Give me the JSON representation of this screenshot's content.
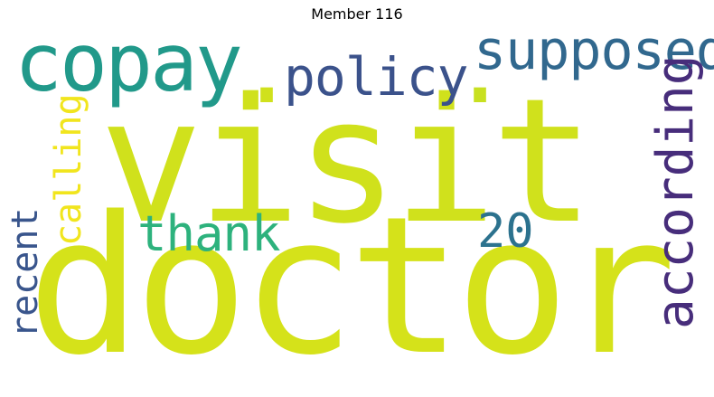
{
  "title": "Member 116",
  "words": {
    "visit": {
      "text": "visit",
      "color": "#d0e11c"
    },
    "doctor": {
      "text": "doctor",
      "color": "#d5e21a"
    },
    "copay": {
      "text": "copay",
      "color": "#21998a"
    },
    "policy": {
      "text": "policy",
      "color": "#3b528b"
    },
    "supposed": {
      "text": "supposed",
      "color": "#31688e"
    },
    "according": {
      "text": "according",
      "color": "#472d7b"
    },
    "thank": {
      "text": "thank",
      "color": "#2db27d"
    },
    "calling": {
      "text": "calling",
      "color": "#f1e51d"
    },
    "recent": {
      "text": "recent",
      "color": "#39558c"
    },
    "num20": {
      "text": "20",
      "color": "#2c728e"
    },
    "dot1": {
      "text": ".",
      "color": "#d0e11c"
    },
    "dot2": {
      "text": ".",
      "color": "#c8e020"
    }
  }
}
